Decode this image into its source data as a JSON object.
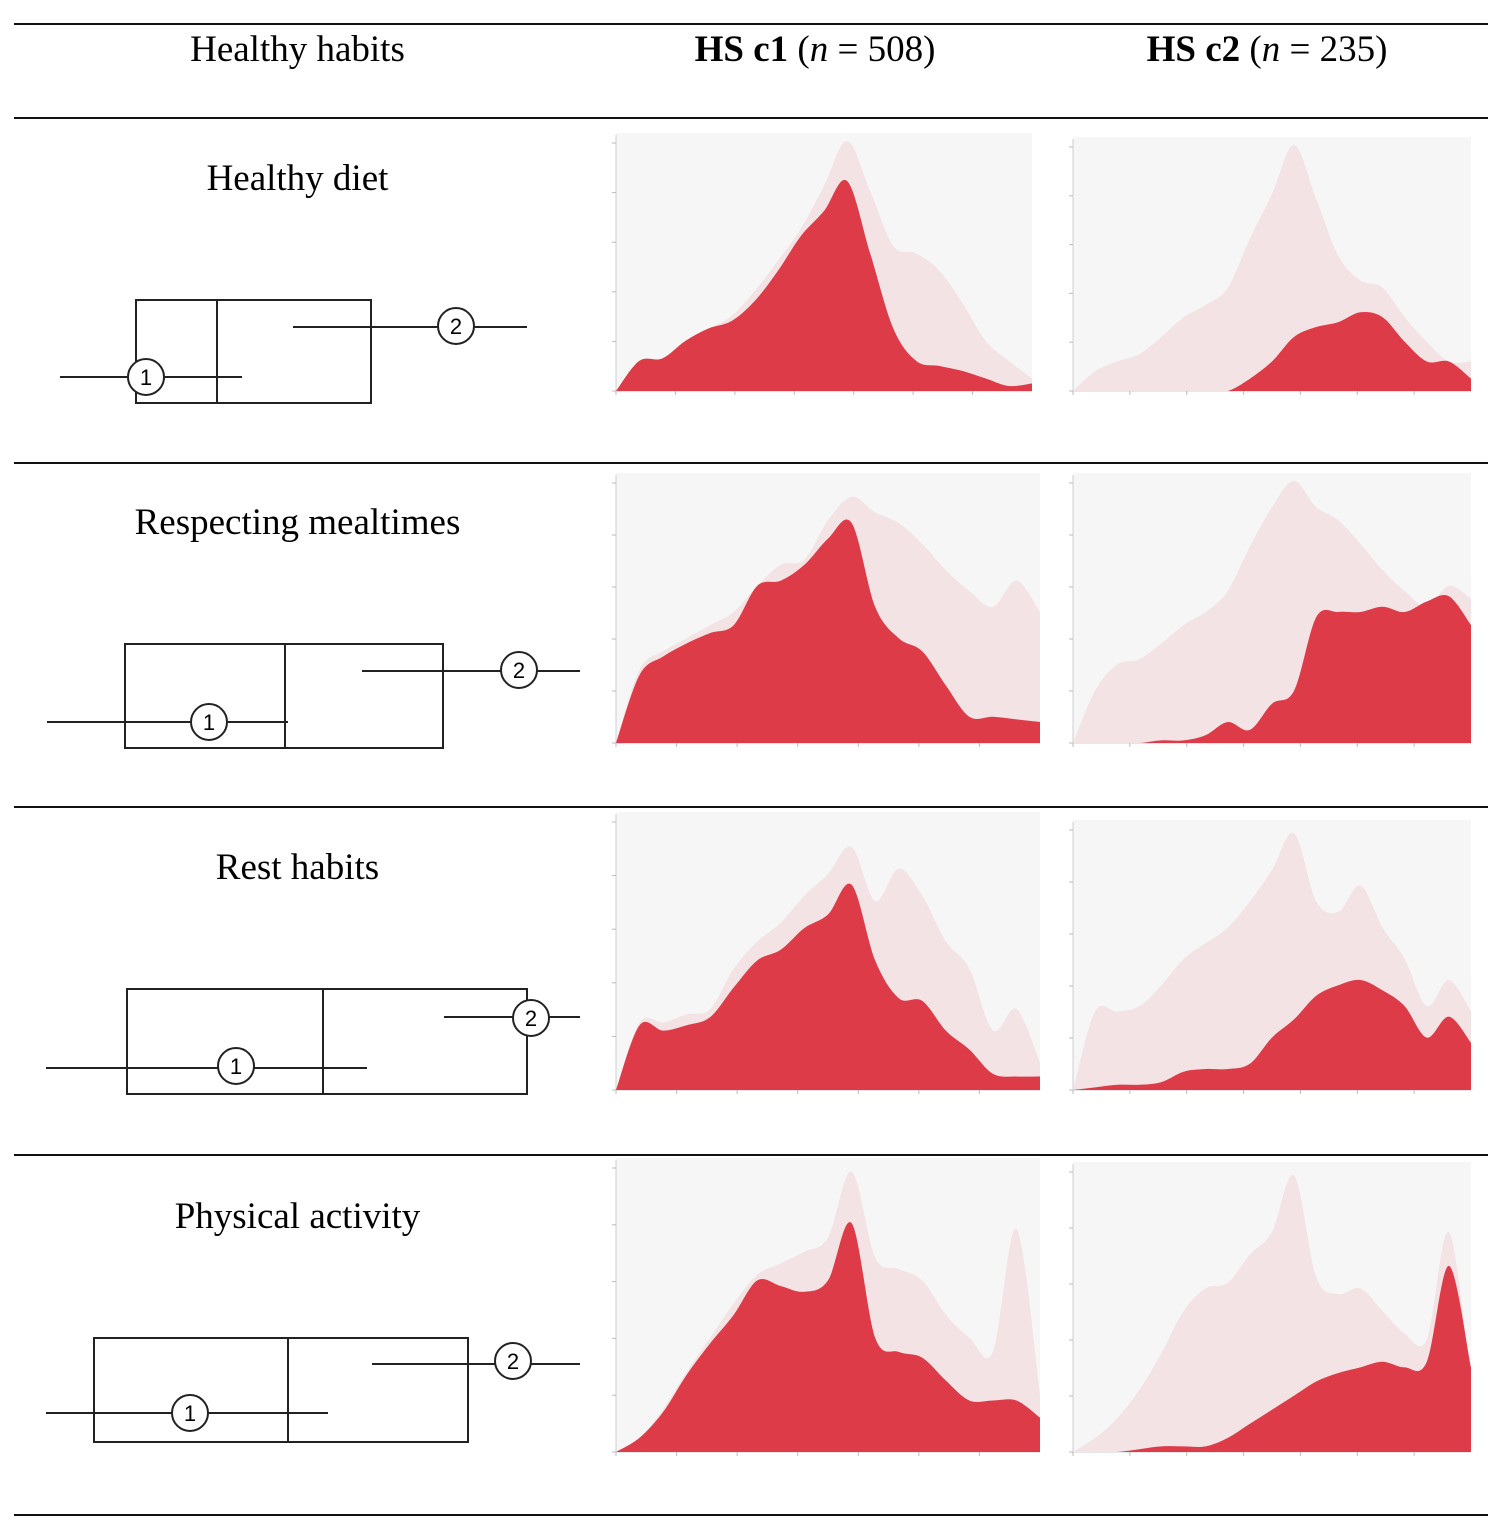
{
  "header": {
    "col1": "Healthy habits",
    "col2_bold": "HS c1",
    "col2_n_open": "(",
    "col2_n_italic": "n",
    "col2_n_rest": " = 508)",
    "col3_bold": "HS c2",
    "col3_n_open": "(",
    "col3_n_italic": "n",
    "col3_n_rest": " = 235)"
  },
  "colors": {
    "overall": "#f3e3e4",
    "cluster": "#dc3b47",
    "panel_bg": "#f6f6f6",
    "line": "#222222"
  },
  "rows": [
    {
      "label": "Healthy diet",
      "marker1": "1",
      "marker2": "2"
    },
    {
      "label": "Respecting mealtimes",
      "marker1": "1",
      "marker2": "2"
    },
    {
      "label": "Rest habits",
      "marker1": "1",
      "marker2": "2"
    },
    {
      "label": "Physical activity",
      "marker1": "1",
      "marker2": "2"
    }
  ],
  "chart_data": [
    {
      "type": "area",
      "row": "Healthy diet",
      "cluster": "HS c1",
      "overall": [
        0,
        0.12,
        0.13,
        0.2,
        0.25,
        0.3,
        0.4,
        0.52,
        0.65,
        0.82,
        1.0,
        0.8,
        0.58,
        0.55,
        0.48,
        0.35,
        0.2,
        0.12,
        0.05
      ],
      "cluster_values": [
        0,
        0.12,
        0.13,
        0.2,
        0.25,
        0.28,
        0.36,
        0.48,
        0.62,
        0.72,
        0.84,
        0.55,
        0.25,
        0.12,
        0.1,
        0.08,
        0.05,
        0.02,
        0.03
      ]
    },
    {
      "type": "area",
      "row": "Healthy diet",
      "cluster": "HS c2",
      "overall": [
        0,
        0.08,
        0.12,
        0.15,
        0.22,
        0.3,
        0.35,
        0.42,
        0.62,
        0.8,
        1.0,
        0.78,
        0.55,
        0.45,
        0.42,
        0.3,
        0.2,
        0.12,
        0.12
      ],
      "cluster_values": [
        0,
        0,
        0,
        0,
        0,
        0,
        0,
        0,
        0.05,
        0.12,
        0.22,
        0.26,
        0.28,
        0.32,
        0.3,
        0.2,
        0.12,
        0.12,
        0.05
      ]
    },
    {
      "type": "area",
      "row": "Respecting mealtimes",
      "cluster": "HS c1",
      "overall": [
        0,
        0.28,
        0.35,
        0.4,
        0.45,
        0.5,
        0.6,
        0.68,
        0.7,
        0.85,
        0.94,
        0.88,
        0.84,
        0.76,
        0.66,
        0.58,
        0.52,
        0.62,
        0.5
      ],
      "cluster_values": [
        0,
        0.26,
        0.33,
        0.38,
        0.42,
        0.45,
        0.6,
        0.62,
        0.68,
        0.78,
        0.84,
        0.52,
        0.4,
        0.35,
        0.22,
        0.1,
        0.1,
        0.09,
        0.08
      ]
    },
    {
      "type": "area",
      "row": "Respecting mealtimes",
      "cluster": "HS c2",
      "overall": [
        0,
        0.2,
        0.3,
        0.32,
        0.38,
        0.45,
        0.5,
        0.58,
        0.75,
        0.9,
        1.0,
        0.9,
        0.85,
        0.76,
        0.66,
        0.58,
        0.52,
        0.6,
        0.55
      ],
      "cluster_values": [
        0,
        0,
        0,
        0,
        0.01,
        0.01,
        0.03,
        0.08,
        0.05,
        0.15,
        0.2,
        0.48,
        0.5,
        0.5,
        0.52,
        0.5,
        0.54,
        0.56,
        0.45
      ]
    },
    {
      "type": "area",
      "row": "Rest habits",
      "cluster": "HS c1",
      "overall": [
        0,
        0.25,
        0.25,
        0.28,
        0.3,
        0.45,
        0.55,
        0.62,
        0.72,
        0.8,
        0.9,
        0.7,
        0.82,
        0.72,
        0.55,
        0.45,
        0.22,
        0.3,
        0.1
      ],
      "cluster_values": [
        0,
        0.24,
        0.22,
        0.24,
        0.27,
        0.38,
        0.48,
        0.52,
        0.6,
        0.65,
        0.76,
        0.48,
        0.34,
        0.33,
        0.22,
        0.15,
        0.06,
        0.05,
        0.05
      ]
    },
    {
      "type": "area",
      "row": "Rest habits",
      "cluster": "HS c2",
      "overall": [
        0,
        0.3,
        0.3,
        0.32,
        0.4,
        0.5,
        0.56,
        0.62,
        0.72,
        0.84,
        0.98,
        0.72,
        0.68,
        0.78,
        0.62,
        0.5,
        0.32,
        0.42,
        0.3
      ],
      "cluster_values": [
        0,
        0.01,
        0.02,
        0.02,
        0.03,
        0.07,
        0.08,
        0.08,
        0.1,
        0.2,
        0.27,
        0.36,
        0.4,
        0.42,
        0.38,
        0.32,
        0.2,
        0.28,
        0.18
      ]
    },
    {
      "type": "area",
      "row": "Physical activity",
      "cluster": "HS c1",
      "overall": [
        0,
        0.05,
        0.15,
        0.28,
        0.4,
        0.52,
        0.62,
        0.66,
        0.7,
        0.75,
        0.98,
        0.68,
        0.64,
        0.6,
        0.48,
        0.4,
        0.35,
        0.78,
        0.2
      ],
      "cluster_values": [
        0,
        0.05,
        0.14,
        0.27,
        0.38,
        0.48,
        0.6,
        0.58,
        0.56,
        0.6,
        0.8,
        0.4,
        0.35,
        0.33,
        0.25,
        0.18,
        0.18,
        0.18,
        0.12
      ]
    },
    {
      "type": "area",
      "row": "Physical activity",
      "cluster": "HS c2",
      "overall": [
        0,
        0.05,
        0.12,
        0.22,
        0.35,
        0.5,
        0.58,
        0.6,
        0.7,
        0.78,
        0.98,
        0.62,
        0.56,
        0.58,
        0.5,
        0.42,
        0.4,
        0.78,
        0.25
      ],
      "cluster_values": [
        0,
        0,
        0,
        0.01,
        0.02,
        0.02,
        0.02,
        0.05,
        0.1,
        0.15,
        0.2,
        0.25,
        0.28,
        0.3,
        0.32,
        0.3,
        0.32,
        0.66,
        0.3
      ]
    }
  ]
}
